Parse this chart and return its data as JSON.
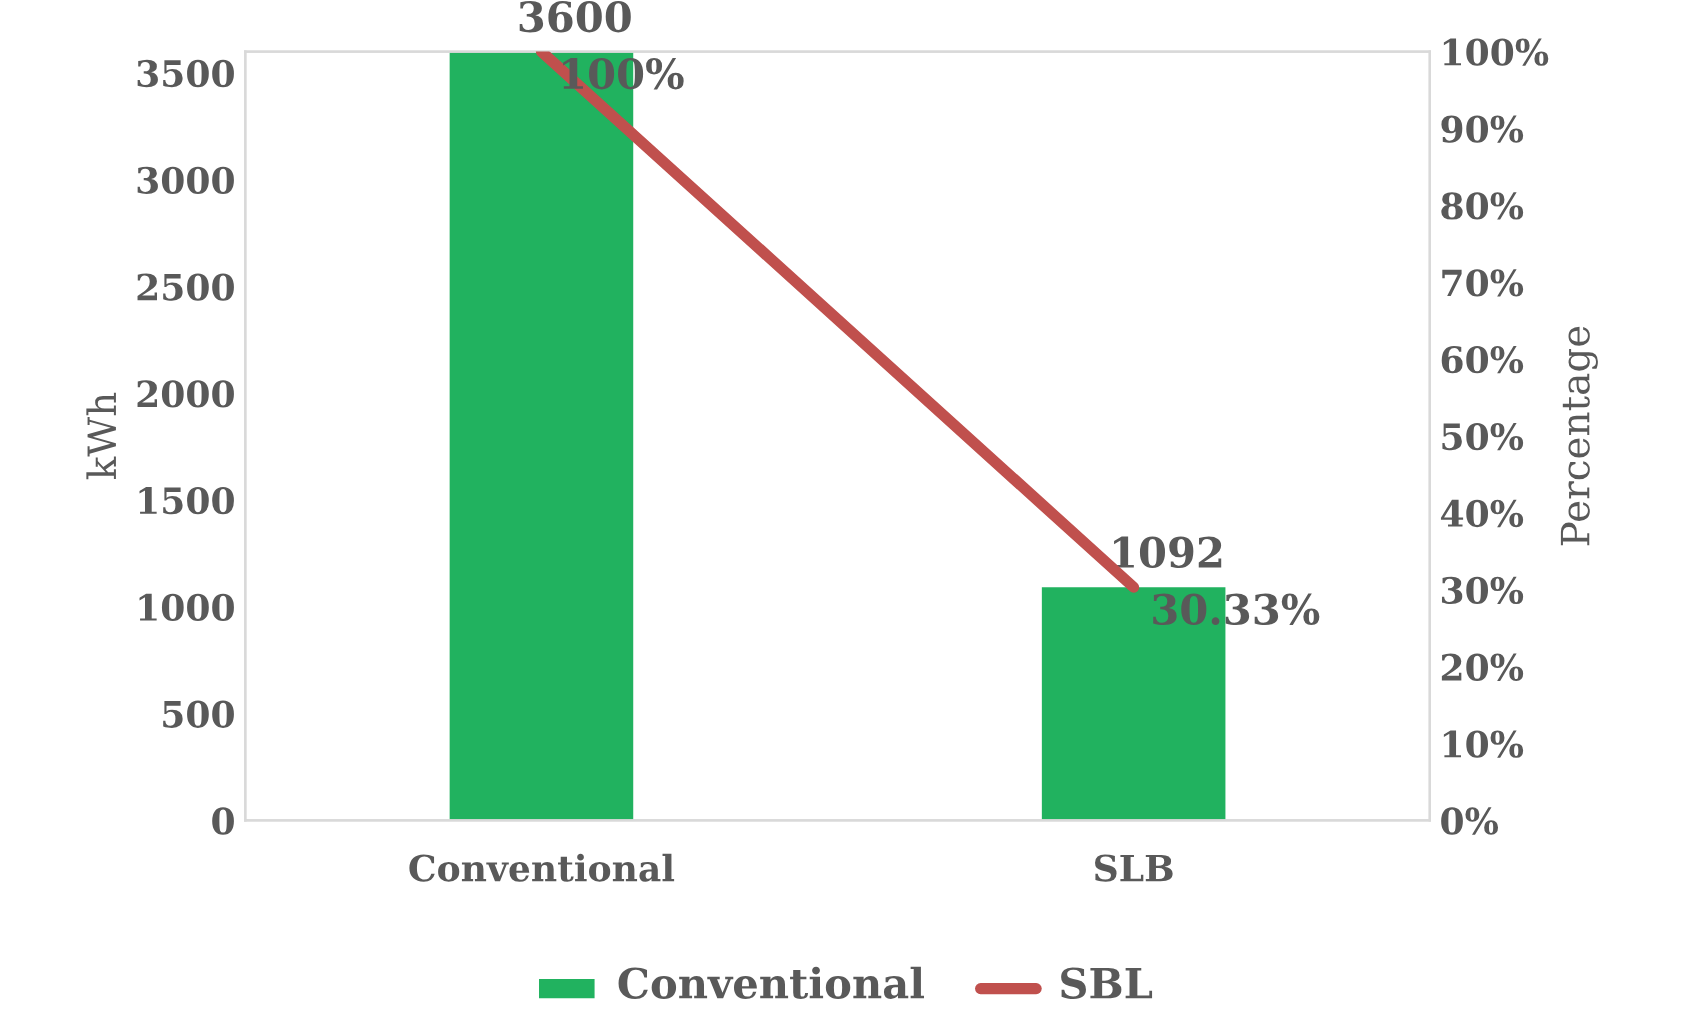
{
  "chart_data": {
    "type": "bar",
    "ylabel": "kWh",
    "y2label": "Percentage",
    "categories": [
      "Conventional",
      "SLB"
    ],
    "series": [
      {
        "name": "Conventional",
        "color": "#21b25f",
        "values": [
          3600,
          1092
        ],
        "value_labels": [
          "3600",
          "1092"
        ]
      },
      {
        "name": "SBL",
        "type": "line",
        "axis": "y2",
        "color": "#c0504d",
        "values": [
          100,
          30.33
        ],
        "value_labels": [
          "100%",
          "30.33%"
        ]
      }
    ],
    "ylim": [
      0,
      3600
    ],
    "yticks": [
      0,
      500,
      1000,
      1500,
      2000,
      2500,
      3000,
      3500
    ],
    "y2lim": [
      0,
      100
    ],
    "y2ticks": [
      {
        "value": 0,
        "label": "0%"
      },
      {
        "value": 10,
        "label": "10%"
      },
      {
        "value": 20,
        "label": "20%"
      },
      {
        "value": 30,
        "label": "30%"
      },
      {
        "value": 40,
        "label": "40%"
      },
      {
        "value": 50,
        "label": "50%"
      },
      {
        "value": 60,
        "label": "60%"
      },
      {
        "value": 70,
        "label": "70%"
      },
      {
        "value": 80,
        "label": "80%"
      },
      {
        "value": 90,
        "label": "90%"
      },
      {
        "value": 100,
        "label": "100%"
      }
    ],
    "grid": false,
    "legend": "bottom",
    "marker": "none",
    "line_style": "solid"
  }
}
